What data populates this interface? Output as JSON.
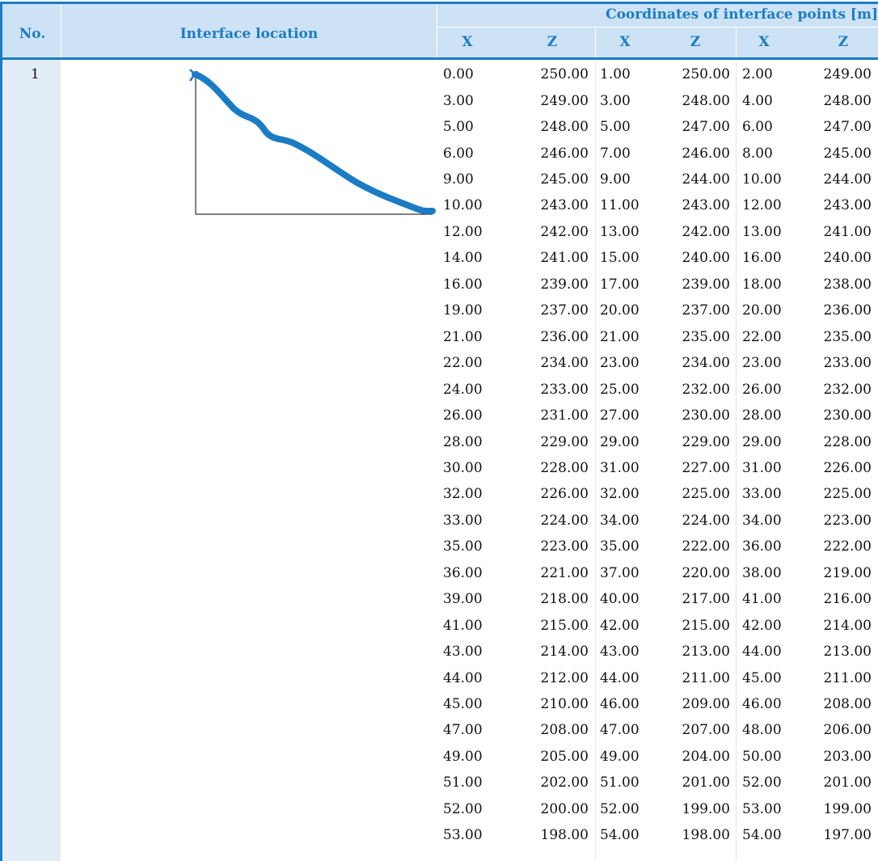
{
  "header": {
    "no": "No.",
    "location": "Interface location",
    "coordinates": "Coordinates of interface points [m]",
    "columns": [
      "X",
      "Z",
      "X",
      "Z",
      "X",
      "Z"
    ]
  },
  "table": {
    "number": "1",
    "rows": [
      [
        "0.00",
        "250.00",
        "1.00",
        "250.00",
        "2.00",
        "249.00"
      ],
      [
        "3.00",
        "249.00",
        "3.00",
        "248.00",
        "4.00",
        "248.00"
      ],
      [
        "5.00",
        "248.00",
        "5.00",
        "247.00",
        "6.00",
        "247.00"
      ],
      [
        "6.00",
        "246.00",
        "7.00",
        "246.00",
        "8.00",
        "245.00"
      ],
      [
        "9.00",
        "245.00",
        "9.00",
        "244.00",
        "10.00",
        "244.00"
      ],
      [
        "10.00",
        "243.00",
        "11.00",
        "243.00",
        "12.00",
        "243.00"
      ],
      [
        "12.00",
        "242.00",
        "13.00",
        "242.00",
        "13.00",
        "241.00"
      ],
      [
        "14.00",
        "241.00",
        "15.00",
        "240.00",
        "16.00",
        "240.00"
      ],
      [
        "16.00",
        "239.00",
        "17.00",
        "239.00",
        "18.00",
        "238.00"
      ],
      [
        "19.00",
        "237.00",
        "20.00",
        "237.00",
        "20.00",
        "236.00"
      ],
      [
        "21.00",
        "236.00",
        "21.00",
        "235.00",
        "22.00",
        "235.00"
      ],
      [
        "22.00",
        "234.00",
        "23.00",
        "234.00",
        "23.00",
        "233.00"
      ],
      [
        "24.00",
        "233.00",
        "25.00",
        "232.00",
        "26.00",
        "232.00"
      ],
      [
        "26.00",
        "231.00",
        "27.00",
        "230.00",
        "28.00",
        "230.00"
      ],
      [
        "28.00",
        "229.00",
        "29.00",
        "229.00",
        "29.00",
        "228.00"
      ],
      [
        "30.00",
        "228.00",
        "31.00",
        "227.00",
        "31.00",
        "226.00"
      ],
      [
        "32.00",
        "226.00",
        "32.00",
        "225.00",
        "33.00",
        "225.00"
      ],
      [
        "33.00",
        "224.00",
        "34.00",
        "224.00",
        "34.00",
        "223.00"
      ],
      [
        "35.00",
        "223.00",
        "35.00",
        "222.00",
        "36.00",
        "222.00"
      ],
      [
        "36.00",
        "221.00",
        "37.00",
        "220.00",
        "38.00",
        "219.00"
      ],
      [
        "39.00",
        "218.00",
        "40.00",
        "217.00",
        "41.00",
        "216.00"
      ],
      [
        "41.00",
        "215.00",
        "42.00",
        "215.00",
        "42.00",
        "214.00"
      ],
      [
        "43.00",
        "214.00",
        "43.00",
        "213.00",
        "44.00",
        "213.00"
      ],
      [
        "44.00",
        "212.00",
        "44.00",
        "211.00",
        "45.00",
        "211.00"
      ],
      [
        "45.00",
        "210.00",
        "46.00",
        "209.00",
        "46.00",
        "208.00"
      ],
      [
        "47.00",
        "208.00",
        "47.00",
        "207.00",
        "48.00",
        "206.00"
      ],
      [
        "49.00",
        "205.00",
        "49.00",
        "204.00",
        "50.00",
        "203.00"
      ],
      [
        "51.00",
        "202.00",
        "51.00",
        "201.00",
        "52.00",
        "201.00"
      ],
      [
        "52.00",
        "200.00",
        "52.00",
        "199.00",
        "53.00",
        "199.00"
      ],
      [
        "53.00",
        "198.00",
        "54.00",
        "198.00",
        "54.00",
        "197.00"
      ]
    ]
  }
}
